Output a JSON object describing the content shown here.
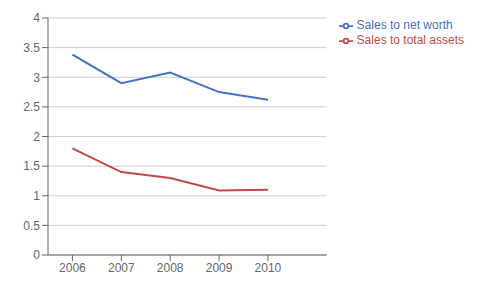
{
  "chart_data": {
    "type": "line",
    "x": [
      2006,
      2007,
      2008,
      2009,
      2010
    ],
    "series": [
      {
        "name": "Sales to net worth",
        "color": "#4472C4",
        "values": [
          3.38,
          2.9,
          3.08,
          2.75,
          2.62
        ]
      },
      {
        "name": "Sales to total assets",
        "color": "#BE4B48",
        "values": [
          1.8,
          1.4,
          1.3,
          1.09,
          1.1
        ]
      }
    ],
    "xlim": [
      2005.5,
      2011.2
    ],
    "xticks": [
      2006,
      2007,
      2008,
      2009,
      2010
    ],
    "ylim": [
      0,
      4
    ],
    "yticks": [
      0,
      0.5,
      1,
      1.5,
      2,
      2.5,
      3,
      3.5,
      4
    ],
    "grid": true,
    "legend": "right"
  }
}
